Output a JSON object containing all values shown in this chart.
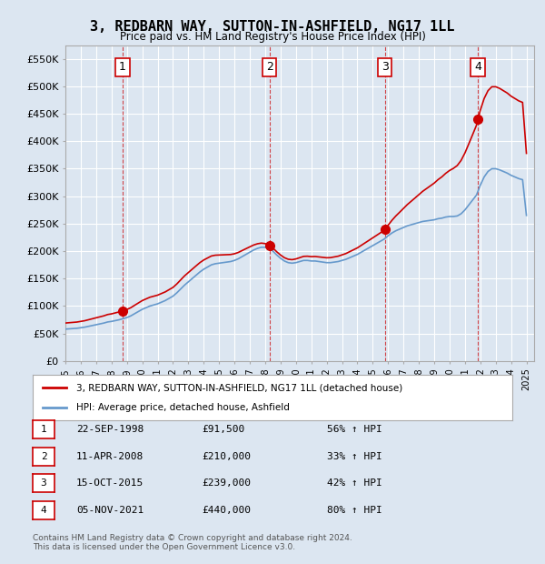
{
  "title": "3, REDBARN WAY, SUTTON-IN-ASHFIELD, NG17 1LL",
  "subtitle": "Price paid vs. HM Land Registry's House Price Index (HPI)",
  "ylabel": "",
  "xlim_start": 1995.0,
  "xlim_end": 2025.5,
  "ylim_min": 0,
  "ylim_max": 575000,
  "yticks": [
    0,
    50000,
    100000,
    150000,
    200000,
    250000,
    300000,
    350000,
    400000,
    450000,
    500000,
    550000
  ],
  "ytick_labels": [
    "£0",
    "£50K",
    "£100K",
    "£150K",
    "£200K",
    "£250K",
    "£300K",
    "£350K",
    "£400K",
    "£450K",
    "£500K",
    "£550K"
  ],
  "background_color": "#dce6f1",
  "plot_bg_color": "#dce6f1",
  "grid_color": "#ffffff",
  "sale_color": "#cc0000",
  "hpi_color": "#6699cc",
  "sale_dates": [
    1998.73,
    2008.28,
    2015.79,
    2021.84
  ],
  "sale_prices": [
    91500,
    210000,
    239000,
    440000
  ],
  "sale_labels": [
    "1",
    "2",
    "3",
    "4"
  ],
  "legend_sale": "3, REDBARN WAY, SUTTON-IN-ASHFIELD, NG17 1LL (detached house)",
  "legend_hpi": "HPI: Average price, detached house, Ashfield",
  "table_entries": [
    [
      "1",
      "22-SEP-1998",
      "£91,500",
      "56% ↑ HPI"
    ],
    [
      "2",
      "11-APR-2008",
      "£210,000",
      "33% ↑ HPI"
    ],
    [
      "3",
      "15-OCT-2015",
      "£239,000",
      "42% ↑ HPI"
    ],
    [
      "4",
      "05-NOV-2021",
      "£440,000",
      "80% ↑ HPI"
    ]
  ],
  "footer": "Contains HM Land Registry data © Crown copyright and database right 2024.\nThis data is licensed under the Open Government Licence v3.0.",
  "hpi_years": [
    1995.0,
    1995.25,
    1995.5,
    1995.75,
    1996.0,
    1996.25,
    1996.5,
    1996.75,
    1997.0,
    1997.25,
    1997.5,
    1997.75,
    1998.0,
    1998.25,
    1998.5,
    1998.75,
    1999.0,
    1999.25,
    1999.5,
    1999.75,
    2000.0,
    2000.25,
    2000.5,
    2000.75,
    2001.0,
    2001.25,
    2001.5,
    2001.75,
    2002.0,
    2002.25,
    2002.5,
    2002.75,
    2003.0,
    2003.25,
    2003.5,
    2003.75,
    2004.0,
    2004.25,
    2004.5,
    2004.75,
    2005.0,
    2005.25,
    2005.5,
    2005.75,
    2006.0,
    2006.25,
    2006.5,
    2006.75,
    2007.0,
    2007.25,
    2007.5,
    2007.75,
    2008.0,
    2008.25,
    2008.5,
    2008.75,
    2009.0,
    2009.25,
    2009.5,
    2009.75,
    2010.0,
    2010.25,
    2010.5,
    2010.75,
    2011.0,
    2011.25,
    2011.5,
    2011.75,
    2012.0,
    2012.25,
    2012.5,
    2012.75,
    2013.0,
    2013.25,
    2013.5,
    2013.75,
    2014.0,
    2014.25,
    2014.5,
    2014.75,
    2015.0,
    2015.25,
    2015.5,
    2015.75,
    2016.0,
    2016.25,
    2016.5,
    2016.75,
    2017.0,
    2017.25,
    2017.5,
    2017.75,
    2018.0,
    2018.25,
    2018.5,
    2018.75,
    2019.0,
    2019.25,
    2019.5,
    2019.75,
    2020.0,
    2020.25,
    2020.5,
    2020.75,
    2021.0,
    2021.25,
    2021.5,
    2021.75,
    2022.0,
    2022.25,
    2022.5,
    2022.75,
    2023.0,
    2023.25,
    2023.5,
    2023.75,
    2024.0,
    2024.25,
    2024.5,
    2024.75,
    2025.0
  ],
  "hpi_values": [
    58000,
    58500,
    59000,
    59500,
    60500,
    61500,
    63000,
    64500,
    66000,
    67500,
    69000,
    71000,
    72000,
    73500,
    75000,
    77000,
    79000,
    82000,
    86000,
    90000,
    94000,
    97000,
    100000,
    102000,
    104000,
    107000,
    110000,
    114000,
    118000,
    124000,
    131000,
    138000,
    144000,
    150000,
    156000,
    162000,
    167000,
    171000,
    175000,
    177000,
    178000,
    179000,
    180000,
    181000,
    183000,
    186000,
    190000,
    194000,
    198000,
    202000,
    205000,
    207000,
    207000,
    205000,
    200000,
    193000,
    187000,
    182000,
    179000,
    178000,
    179000,
    181000,
    183000,
    183000,
    182000,
    182000,
    181000,
    180000,
    179000,
    179000,
    180000,
    181000,
    183000,
    185000,
    188000,
    191000,
    194000,
    198000,
    202000,
    206000,
    210000,
    214000,
    218000,
    222000,
    228000,
    233000,
    237000,
    240000,
    243000,
    246000,
    248000,
    250000,
    252000,
    254000,
    255000,
    256000,
    257000,
    259000,
    260000,
    262000,
    263000,
    263000,
    264000,
    268000,
    275000,
    284000,
    293000,
    302000,
    320000,
    335000,
    345000,
    350000,
    350000,
    348000,
    345000,
    342000,
    338000,
    335000,
    332000,
    330000,
    265000
  ],
  "sale_hpi_values": [
    58900,
    157900,
    168000,
    244000
  ]
}
